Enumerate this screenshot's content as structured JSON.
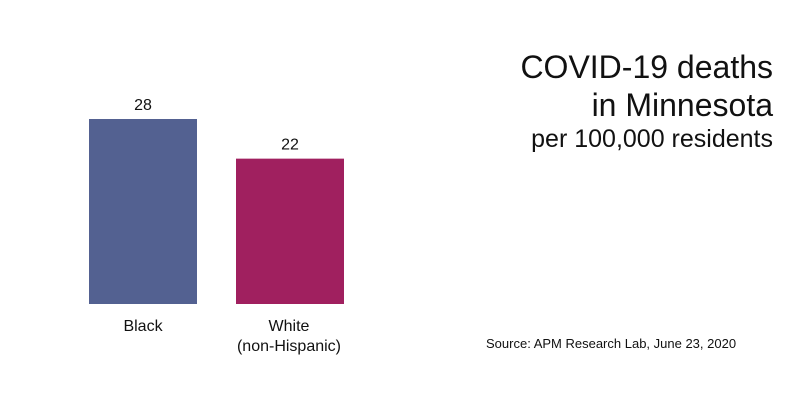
{
  "chart_data": {
    "type": "bar",
    "categories": [
      "Black",
      "White\n(non-Hispanic)"
    ],
    "values": [
      28,
      22
    ],
    "colors": [
      "#536191",
      "#a0205f"
    ],
    "title": [
      "COVID-19 deaths",
      "in Minnesota"
    ],
    "subtitle": "per 100,000 residents",
    "xlabel": "",
    "ylabel": "",
    "ylim": [
      0,
      28
    ],
    "grid": false,
    "legend": "none",
    "source": "Source: APM Research Lab, June 23, 2020"
  }
}
